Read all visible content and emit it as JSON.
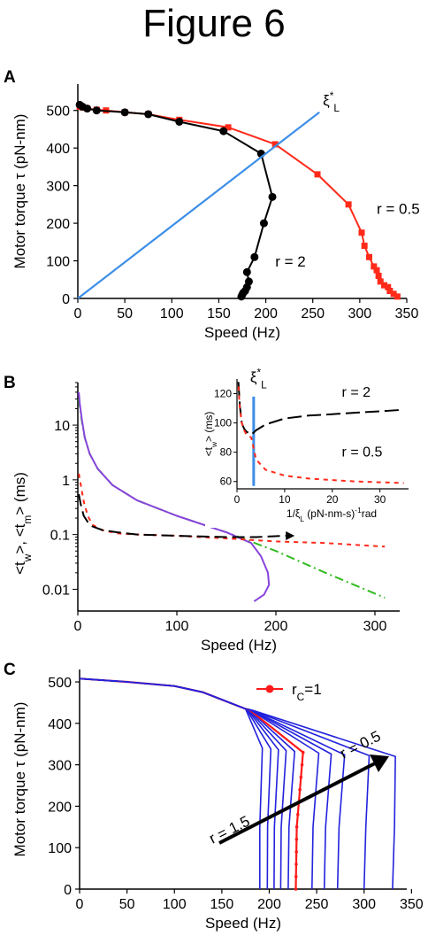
{
  "figure_title": "Figure 6",
  "chart_data": [
    {
      "panel": "A",
      "type": "line",
      "xlabel": "Speed (Hz)",
      "ylabel": "Motor torque τ (pN-nm)",
      "xlim": [
        0,
        350
      ],
      "ylim": [
        0,
        570
      ],
      "xticks": [
        "0",
        "50",
        "100",
        "150",
        "200",
        "250",
        "300",
        "350"
      ],
      "yticks": [
        "0",
        "100",
        "200",
        "300",
        "400",
        "500"
      ],
      "colors": {
        "r05": "#ff2a1a",
        "r2": "#000000",
        "line": "#3b8ee8"
      },
      "series": [
        {
          "name": "r = 0.5",
          "color": "#ff2a1a",
          "marker": "square",
          "x": [
            2,
            5,
            10,
            20,
            30,
            50,
            75,
            108,
            160,
            210,
            255,
            288,
            302,
            305,
            310,
            315,
            318,
            320,
            322,
            326,
            330,
            332,
            336,
            340
          ],
          "y": [
            510,
            508,
            505,
            502,
            500,
            495,
            490,
            475,
            455,
            410,
            330,
            250,
            175,
            140,
            110,
            85,
            75,
            60,
            45,
            35,
            30,
            20,
            12,
            5
          ]
        },
        {
          "name": "r = 2",
          "color": "#000000",
          "marker": "circle",
          "x": [
            2,
            5,
            10,
            20,
            50,
            75,
            108,
            155,
            195,
            207,
            198,
            188,
            180,
            182,
            180,
            178,
            176,
            175,
            174
          ],
          "y": [
            515,
            510,
            505,
            500,
            495,
            490,
            470,
            445,
            385,
            270,
            200,
            110,
            70,
            45,
            30,
            20,
            15,
            10,
            5
          ]
        },
        {
          "name": "ξ*L",
          "color": "#3b8ee8",
          "marker": "none",
          "x": [
            0,
            257
          ],
          "y": [
            0,
            495
          ]
        }
      ],
      "annotations": [
        "ξ*L",
        "r = 0.5",
        "r = 2"
      ]
    },
    {
      "panel": "B",
      "type": "line",
      "xlabel": "Speed (Hz)",
      "ylabel": "<tw>, <tm> (ms)",
      "yscale": "log",
      "xlim": [
        0,
        325
      ],
      "ylim": [
        0.004,
        60
      ],
      "xticks": [
        "0",
        "100",
        "200",
        "300"
      ],
      "yticks": [
        "0.01",
        "0.1",
        "1",
        "10"
      ],
      "series": [
        {
          "name": "green dash-dot",
          "color": "#33bb22",
          "x": [
            1,
            2,
            4,
            7,
            12,
            20,
            35,
            60,
            100,
            150,
            200,
            250,
            310
          ],
          "y": [
            30,
            22,
            12,
            6,
            3,
            1.6,
            0.8,
            0.42,
            0.22,
            0.11,
            0.05,
            0.02,
            0.007
          ]
        },
        {
          "name": "purple solid",
          "color": "#8844dd",
          "x": [
            1,
            2,
            4,
            7,
            12,
            20,
            35,
            60,
            100,
            150,
            175,
            185,
            192,
            193,
            188,
            178
          ],
          "y": [
            40,
            25,
            13,
            6,
            3,
            1.6,
            0.8,
            0.42,
            0.22,
            0.11,
            0.07,
            0.04,
            0.02,
            0.012,
            0.008,
            0.006
          ]
        },
        {
          "name": "red dashed",
          "color": "#ff2a1a",
          "x": [
            1,
            3,
            6,
            10,
            15,
            25,
            40,
            60,
            100,
            150,
            200,
            250,
            310
          ],
          "y": [
            1.3,
            0.8,
            0.4,
            0.22,
            0.15,
            0.12,
            0.105,
            0.1,
            0.095,
            0.085,
            0.075,
            0.07,
            0.06
          ]
        },
        {
          "name": "black dashed",
          "color": "#000000",
          "x": [
            1,
            3,
            6,
            10,
            15,
            25,
            40,
            60,
            100,
            150,
            180,
            210
          ],
          "y": [
            0.55,
            0.35,
            0.22,
            0.17,
            0.14,
            0.12,
            0.11,
            0.1,
            0.095,
            0.09,
            0.09,
            0.095
          ]
        }
      ],
      "inset": {
        "xlabel": "1/ξL (pN-nm-s)⁻¹rad",
        "ylabel": "<tw> (ms)",
        "xlim": [
          0,
          36
        ],
        "ylim": [
          55,
          130
        ],
        "xticks": [
          "0",
          "10",
          "20",
          "30"
        ],
        "yticks": [
          "60",
          "80",
          "100",
          "120"
        ],
        "annotations": [
          "ξ*L",
          "r = 2",
          "r = 0.5"
        ],
        "vline_x": 3.5,
        "series": [
          {
            "name": "r = 2",
            "color": "#000000",
            "x": [
              0.3,
              0.6,
              1,
              1.5,
              2,
              3,
              4,
              6,
              10,
              15,
              20,
              25,
              30,
              35
            ],
            "y": [
              128,
              112,
              100,
              96,
              94,
              92,
              95,
              99,
              103,
              105,
              106,
              107,
              108,
              109
            ]
          },
          {
            "name": "r = 0.5",
            "color": "#ff2a1a",
            "x": [
              0.3,
              0.6,
              1,
              1.5,
              2,
              3,
              4,
              6,
              10,
              15,
              20,
              25,
              30,
              35
            ],
            "y": [
              125,
              110,
              100,
              95,
              92,
              90,
              75,
              68,
              64,
              62,
              61,
              60,
              59.5,
              59
            ]
          }
        ]
      }
    },
    {
      "panel": "C",
      "type": "line",
      "xlabel": "Speed (Hz)",
      "ylabel": "Motor torque τ (pN-nm)",
      "xlim": [
        0,
        345
      ],
      "ylim": [
        0,
        530
      ],
      "xticks": [
        "0",
        "50",
        "100",
        "150",
        "200",
        "250",
        "300",
        "350"
      ],
      "yticks": [
        "0",
        "100",
        "200",
        "300",
        "400",
        "500"
      ],
      "legend": "rc=1",
      "annotations": [
        "r = 1.5",
        "r = 0.5"
      ],
      "common_top": {
        "x": [
          0,
          50,
          100,
          130,
          175
        ],
        "y": [
          508,
          500,
          490,
          475,
          435
        ]
      },
      "curves_bottom_speed": [
        190,
        198,
        205,
        212,
        220,
        228,
        245,
        258,
        272,
        300,
        330
      ],
      "red_curve_index": 5,
      "colors": {
        "blue": "#2222dd",
        "red": "#ff1a1a"
      }
    }
  ]
}
